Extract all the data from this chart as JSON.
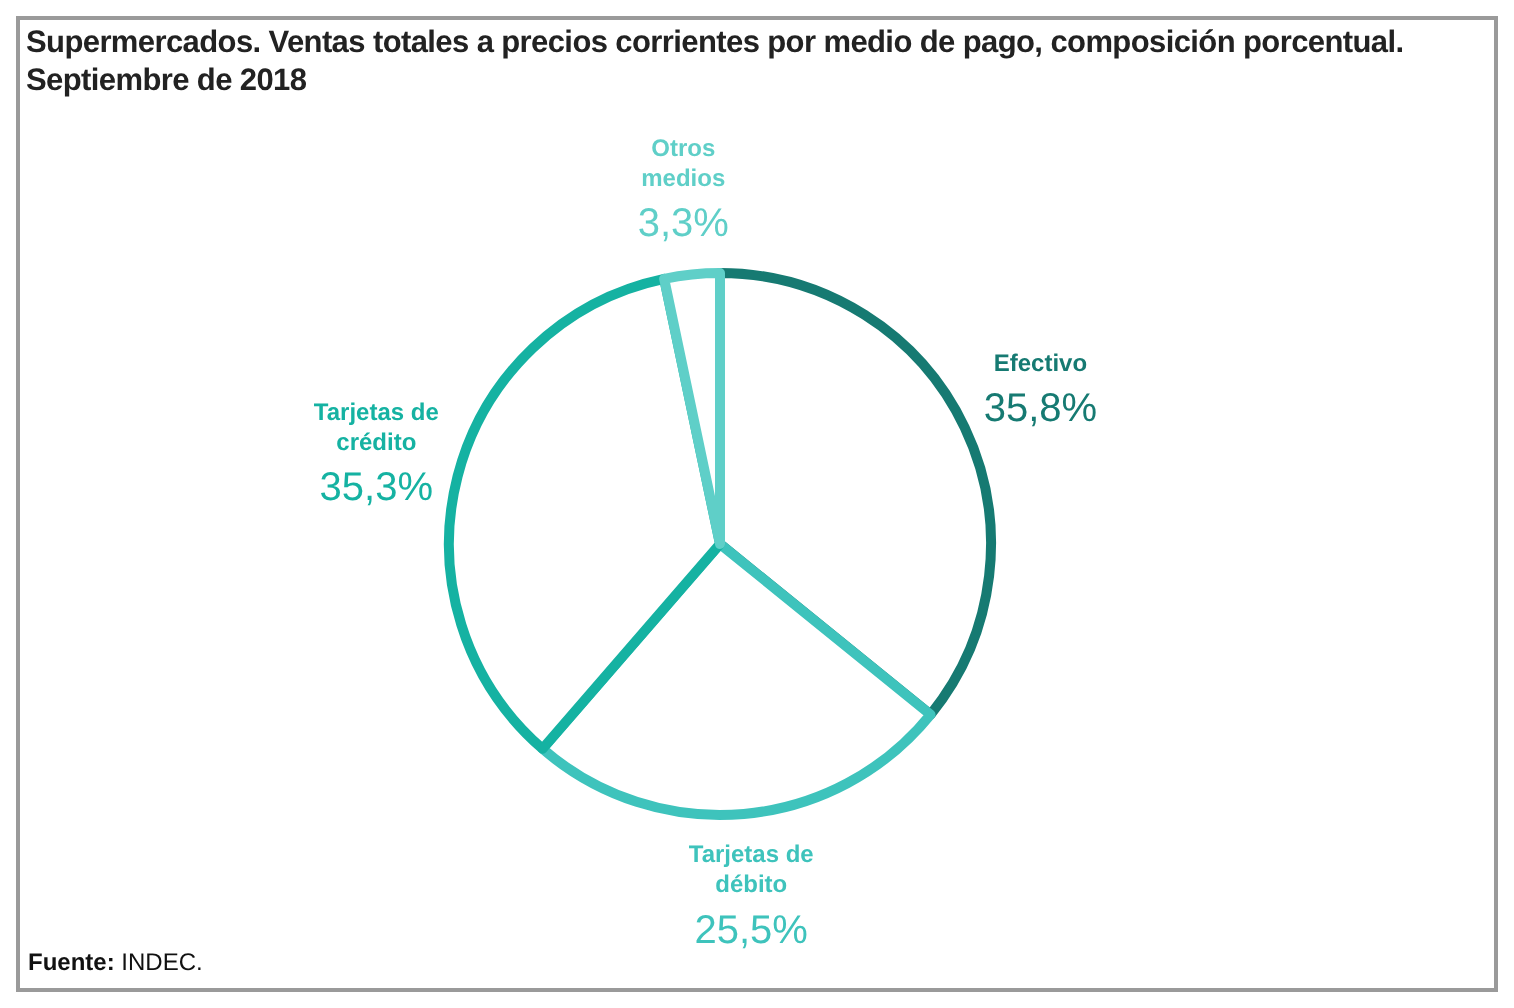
{
  "chart_data": {
    "type": "pie",
    "title": "Supermercados. Ventas totales a precios corrientes por medio de pago, composición porcentual. Septiembre de 2018",
    "categories": [
      "Efectivo",
      "Tarjetas de débito",
      "Tarjetas de crédito",
      "Otros medios"
    ],
    "values": [
      35.8,
      25.5,
      35.3,
      3.3
    ],
    "value_labels": [
      "35,8%",
      "25,5%",
      "35,3%",
      "3,3%"
    ],
    "colors": [
      "#167a72",
      "#3ec3bc",
      "#15b2a2",
      "#5fcfc8"
    ],
    "legend": false,
    "annotations": [
      "Fuente: INDEC."
    ]
  }
}
